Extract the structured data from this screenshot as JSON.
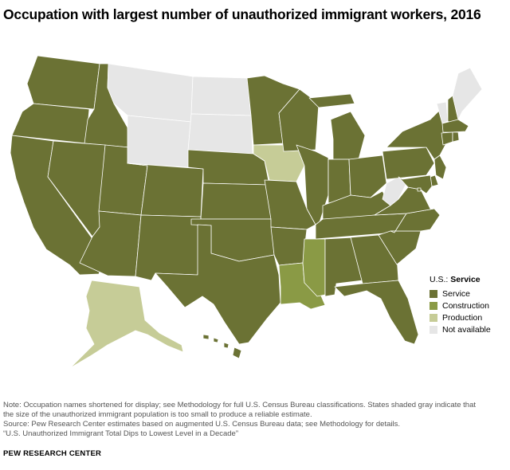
{
  "title": "Occupation with largest number of unauthorized immigrant workers, 2016",
  "legend": {
    "prefix": "U.S.: ",
    "national_value": "Service",
    "items": [
      {
        "label": "Service",
        "color": "#6b7234"
      },
      {
        "label": "Construction",
        "color": "#8a9a45"
      },
      {
        "label": "Production",
        "color": "#c6cc97"
      },
      {
        "label": "Not available",
        "color": "#e6e6e6"
      }
    ]
  },
  "categories": {
    "service": "Service",
    "construction": "Construction",
    "production": "Production",
    "na": "Not available"
  },
  "states": {
    "WA": "service",
    "OR": "service",
    "CA": "service",
    "ID": "service",
    "NV": "service",
    "UT": "service",
    "AZ": "service",
    "MT": "na",
    "WY": "na",
    "CO": "service",
    "NM": "service",
    "ND": "na",
    "SD": "na",
    "NE": "service",
    "KS": "service",
    "OK": "service",
    "TX": "service",
    "MN": "service",
    "IA": "production",
    "MO": "service",
    "AR": "service",
    "LA": "construction",
    "WI": "service",
    "IL": "service",
    "MS": "construction",
    "MI": "service",
    "IN": "service",
    "OH": "service",
    "KY": "service",
    "TN": "service",
    "AL": "service",
    "GA": "service",
    "FL": "service",
    "SC": "service",
    "NC": "service",
    "VA": "service",
    "WV": "na",
    "PA": "service",
    "NY": "service",
    "VT": "na",
    "NH": "service",
    "ME": "na",
    "MA": "service",
    "CT": "service",
    "RI": "service",
    "NJ": "service",
    "DE": "service",
    "MD": "service",
    "DC": "service",
    "AK": "production",
    "HI": "service"
  },
  "notes": [
    "Note: Occupation names shortened for display; see Methodology for full U.S. Census Bureau classifications. States shaded gray indicate that",
    "the size of the unauthorized immigrant population is too small to produce a reliable estimate.",
    "Source: Pew Research Center estimates based on augmented U.S. Census Bureau data; see Methodology for details.",
    "“U.S. Unauthorized Immigrant Total Dips to Lowest Level in a Decade”"
  ],
  "credit": "PEW RESEARCH CENTER"
}
